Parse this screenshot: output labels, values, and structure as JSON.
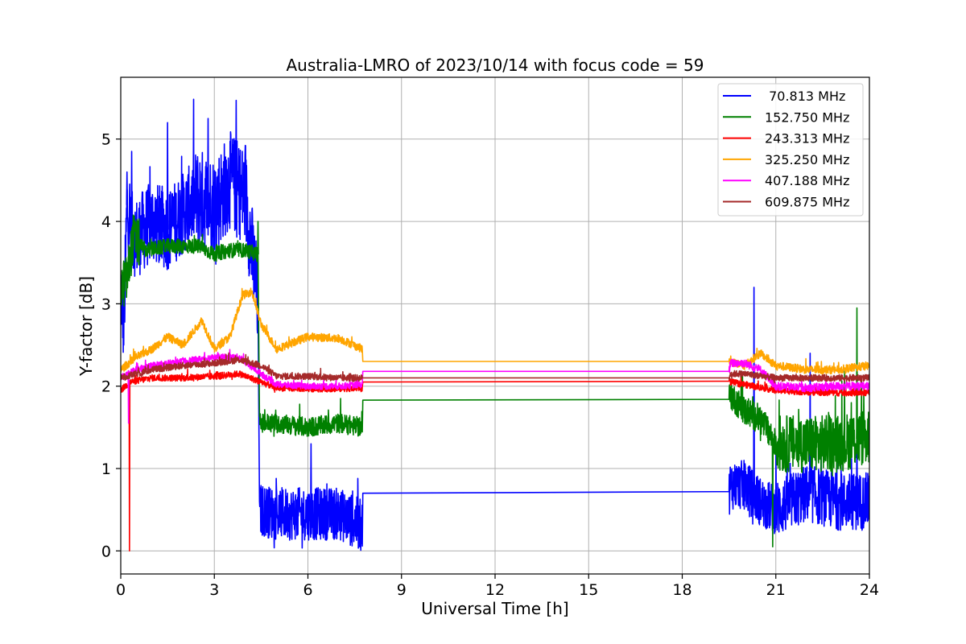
{
  "chart_data": {
    "type": "line",
    "title": "Australia-LMRO of 2023/10/14 with focus code = 59",
    "xlabel": "Universal Time [h]",
    "ylabel": "Y-factor [dB]",
    "xlim": [
      0,
      24
    ],
    "ylim": [
      -0.28,
      5.75
    ],
    "xticks": [
      0,
      3,
      6,
      9,
      12,
      15,
      18,
      21,
      24
    ],
    "yticks": [
      0,
      1,
      2,
      3,
      4,
      5
    ],
    "grid": true,
    "legend_position": "top-right",
    "gap": [
      7.75,
      19.5
    ],
    "series": [
      {
        "name": " 70.813 MHz",
        "color": "#0000ff",
        "anchors": [
          [
            0,
            3.2
          ],
          [
            0.1,
            2.7
          ],
          [
            0.2,
            4.2
          ],
          [
            0.3,
            3.9
          ],
          [
            0.5,
            3.8
          ],
          [
            1,
            4.0
          ],
          [
            1.5,
            3.9
          ],
          [
            2,
            4.1
          ],
          [
            2.5,
            4.3
          ],
          [
            3,
            4.2
          ],
          [
            3.5,
            4.5
          ],
          [
            4,
            4.3
          ],
          [
            4.4,
            3.0
          ],
          [
            4.45,
            0.5
          ],
          [
            5,
            0.45
          ],
          [
            6,
            0.45
          ],
          [
            7,
            0.45
          ],
          [
            7.75,
            0.3
          ],
          [
            7.76,
            0.7
          ],
          [
            19.5,
            0.72
          ],
          [
            19.55,
            0.8
          ],
          [
            20,
            0.8
          ],
          [
            20.5,
            0.6
          ],
          [
            21,
            0.5
          ],
          [
            22,
            0.7
          ],
          [
            23,
            0.6
          ],
          [
            24,
            0.6
          ]
        ],
        "noise": [
          [
            0,
            2.4,
            0.5
          ],
          [
            2.4,
            4.4,
            0.6
          ],
          [
            4.45,
            7.75,
            0.32
          ],
          [
            19.5,
            21,
            0.3
          ],
          [
            21,
            24,
            0.35
          ]
        ],
        "spikes": [
          [
            1.5,
            5.2
          ],
          [
            2.8,
            5.25
          ],
          [
            3.7,
            5.47
          ],
          [
            0.35,
            4.85
          ],
          [
            0.2,
            4.6
          ],
          [
            20.3,
            3.2
          ],
          [
            22.1,
            2.4
          ],
          [
            6.1,
            1.3
          ],
          [
            23.6,
            1.5
          ]
        ]
      },
      {
        "name": "152.750 MHz",
        "color": "#008000",
        "anchors": [
          [
            0,
            3.2
          ],
          [
            0.2,
            3.3
          ],
          [
            0.4,
            3.8
          ],
          [
            0.8,
            3.65
          ],
          [
            1.5,
            3.7
          ],
          [
            2.5,
            3.7
          ],
          [
            3,
            3.6
          ],
          [
            3.5,
            3.65
          ],
          [
            4,
            3.65
          ],
          [
            4.4,
            3.6
          ],
          [
            4.45,
            1.55
          ],
          [
            5,
            1.55
          ],
          [
            6,
            1.5
          ],
          [
            7,
            1.55
          ],
          [
            7.75,
            1.5
          ],
          [
            7.76,
            1.83
          ],
          [
            19.5,
            1.84
          ],
          [
            19.55,
            1.9
          ],
          [
            20,
            1.7
          ],
          [
            20.5,
            1.6
          ],
          [
            21,
            1.3
          ],
          [
            22,
            1.3
          ],
          [
            23,
            1.3
          ],
          [
            24,
            1.4
          ]
        ],
        "noise": [
          [
            0,
            0.6,
            0.3
          ],
          [
            0.6,
            4.4,
            0.09
          ],
          [
            4.45,
            7.75,
            0.12
          ],
          [
            19.5,
            21,
            0.18
          ],
          [
            21,
            24,
            0.35
          ]
        ],
        "spikes": [
          [
            4.4,
            4.0
          ],
          [
            23.6,
            2.95
          ],
          [
            20.9,
            0.05
          ]
        ]
      },
      {
        "name": "243.313 MHz",
        "color": "#ff0000",
        "anchors": [
          [
            0,
            1.95
          ],
          [
            0.3,
            2.05
          ],
          [
            1,
            2.1
          ],
          [
            2,
            2.1
          ],
          [
            3,
            2.12
          ],
          [
            3.8,
            2.15
          ],
          [
            4.5,
            2.05
          ],
          [
            5,
            1.98
          ],
          [
            6,
            1.97
          ],
          [
            7,
            1.97
          ],
          [
            7.75,
            1.98
          ],
          [
            7.76,
            2.05
          ],
          [
            19.5,
            2.06
          ],
          [
            19.55,
            2.05
          ],
          [
            20,
            2.02
          ],
          [
            21,
            1.95
          ],
          [
            22,
            1.93
          ],
          [
            23,
            1.92
          ],
          [
            24,
            1.92
          ]
        ],
        "noise": [
          [
            0,
            7.75,
            0.04
          ],
          [
            19.5,
            24,
            0.04
          ]
        ],
        "spikes": [
          [
            0.28,
            0.0
          ]
        ]
      },
      {
        "name": "325.250 MHz",
        "color": "#ffa500",
        "anchors": [
          [
            0,
            2.2
          ],
          [
            0.5,
            2.35
          ],
          [
            1,
            2.45
          ],
          [
            1.5,
            2.6
          ],
          [
            2,
            2.5
          ],
          [
            2.6,
            2.8
          ],
          [
            3,
            2.45
          ],
          [
            3.5,
            2.6
          ],
          [
            3.9,
            3.1
          ],
          [
            4.2,
            3.15
          ],
          [
            4.5,
            2.75
          ],
          [
            5,
            2.45
          ],
          [
            6,
            2.6
          ],
          [
            7,
            2.58
          ],
          [
            7.75,
            2.45
          ],
          [
            7.76,
            2.3
          ],
          [
            19.5,
            2.3
          ],
          [
            20,
            2.25
          ],
          [
            20.5,
            2.4
          ],
          [
            21,
            2.25
          ],
          [
            22,
            2.2
          ],
          [
            23,
            2.2
          ],
          [
            24,
            2.25
          ]
        ],
        "noise": [
          [
            0,
            7.75,
            0.05
          ],
          [
            19.5,
            24,
            0.05
          ]
        ],
        "spikes": []
      },
      {
        "name": "407.188 MHz",
        "color": "#ff00ff",
        "anchors": [
          [
            0,
            2.1
          ],
          [
            0.5,
            2.2
          ],
          [
            1,
            2.25
          ],
          [
            2,
            2.3
          ],
          [
            3,
            2.35
          ],
          [
            3.8,
            2.35
          ],
          [
            4.5,
            2.15
          ],
          [
            5,
            2.02
          ],
          [
            6,
            2.0
          ],
          [
            7,
            2.0
          ],
          [
            7.75,
            2.02
          ],
          [
            7.76,
            2.18
          ],
          [
            19.5,
            2.18
          ],
          [
            19.55,
            2.28
          ],
          [
            20,
            2.28
          ],
          [
            20.5,
            2.2
          ],
          [
            21,
            2.0
          ],
          [
            22,
            1.98
          ],
          [
            23,
            2.0
          ],
          [
            24,
            2.0
          ]
        ],
        "noise": [
          [
            0,
            7.75,
            0.04
          ],
          [
            19.5,
            24,
            0.05
          ]
        ],
        "spikes": [
          [
            0.25,
            1.55
          ]
        ]
      },
      {
        "name": "609.875 MHz",
        "color": "#a52a2a",
        "anchors": [
          [
            0,
            2.1
          ],
          [
            0.5,
            2.15
          ],
          [
            1,
            2.2
          ],
          [
            2,
            2.25
          ],
          [
            3,
            2.28
          ],
          [
            3.8,
            2.32
          ],
          [
            4.5,
            2.25
          ],
          [
            5,
            2.12
          ],
          [
            6,
            2.12
          ],
          [
            7,
            2.1
          ],
          [
            7.75,
            2.1
          ],
          [
            7.76,
            2.1
          ],
          [
            19.5,
            2.1
          ],
          [
            19.55,
            2.15
          ],
          [
            20,
            2.15
          ],
          [
            21,
            2.1
          ],
          [
            22,
            2.1
          ],
          [
            23,
            2.1
          ],
          [
            24,
            2.1
          ]
        ],
        "noise": [
          [
            0,
            7.75,
            0.04
          ],
          [
            19.5,
            24,
            0.04
          ]
        ],
        "spikes": []
      }
    ]
  }
}
